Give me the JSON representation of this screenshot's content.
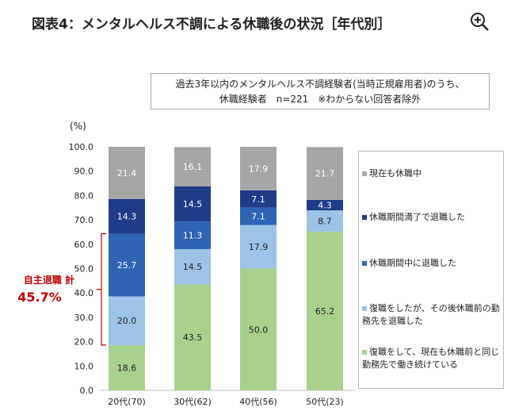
{
  "title": "図表4：メンタルヘルス不調による休職後の状況［年代別］",
  "zoom_icon": "zoom-in-icon",
  "note": [
    "過去3年以内のメンタルヘルス不調経験者(当時正規雇用者)のうち、",
    "休職経験者　n=221　※わからない回答者除外"
  ],
  "annotation": {
    "label": "自主退職 計",
    "value": "45.7%",
    "color": "#c00000"
  },
  "chart_data": {
    "type": "bar",
    "stacked": true,
    "ylabel": "(%)",
    "ylim": [
      0,
      100
    ],
    "yticks": [
      "0.0",
      "10.0",
      "20.0",
      "30.0",
      "40.0",
      "50.0",
      "60.0",
      "70.0",
      "80.0",
      "90.0",
      "100.0"
    ],
    "categories": [
      "20代(70)",
      "30代(62)",
      "40代(56)",
      "50代(23)"
    ],
    "legend_position": "right",
    "series": [
      {
        "name": "復職をして、現在も休職前と同じ勤務先で働き続けている",
        "color": "#a9d18e",
        "values": [
          18.6,
          43.5,
          50.0,
          65.2
        ]
      },
      {
        "name": "復職をしたが、その後休職前の勤務先を退職した",
        "color": "#9dc3e6",
        "values": [
          20.0,
          14.5,
          17.9,
          8.7
        ]
      },
      {
        "name": "休職期間中に退職した",
        "color": "#2e64b4",
        "values": [
          25.7,
          11.3,
          7.1,
          null
        ]
      },
      {
        "name": "休職期間満了で退職した",
        "color": "#1f3c88",
        "values": [
          14.3,
          14.5,
          7.1,
          4.3
        ]
      },
      {
        "name": "現在も休職中",
        "color": "#a6a6a6",
        "values": [
          21.4,
          16.1,
          17.9,
          21.7
        ]
      }
    ]
  }
}
